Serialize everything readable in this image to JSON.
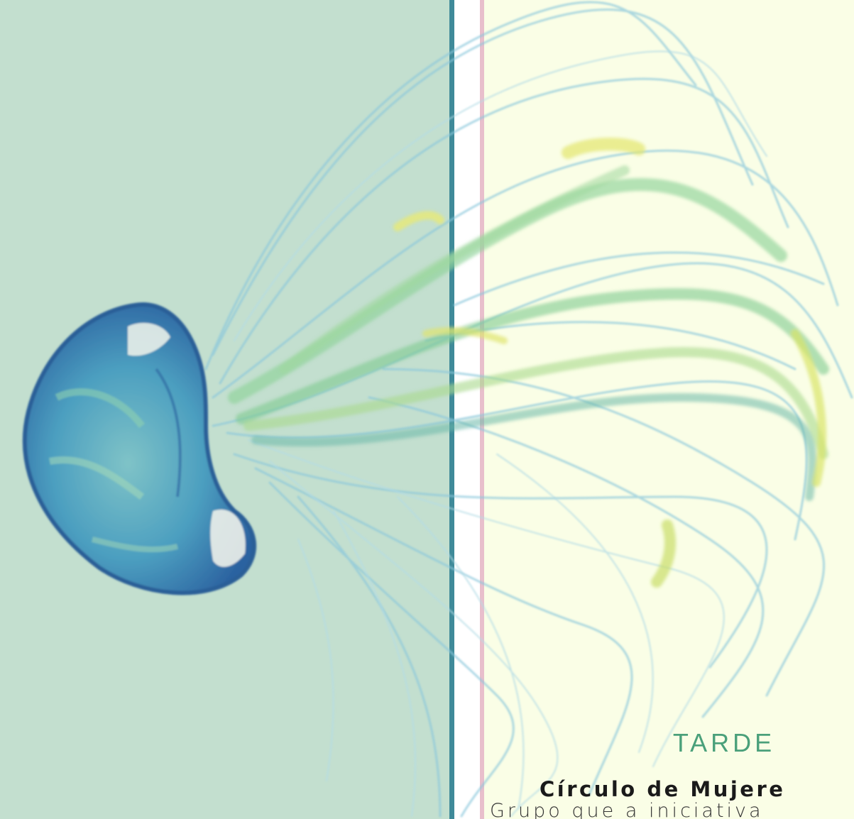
{
  "colors": {
    "left_background": "#c3dfcf",
    "right_background": "#fafee6",
    "stripe_teal": "#3f8a99",
    "stripe_pink": "#e8bfcc",
    "heading_color": "#4aa07a",
    "jellyfish_dark": "#2a6aa0",
    "jellyfish_mid": "#4aa0c2",
    "tentacle_green": "#7cc488",
    "tentacle_yellow": "#d8e46a"
  },
  "illustration": {
    "subject": "watercolor-jellyfish"
  },
  "text": {
    "heading": "TARDE",
    "subtitle": "Círculo de Mujere",
    "description": "Grupo que a iniciativa"
  }
}
